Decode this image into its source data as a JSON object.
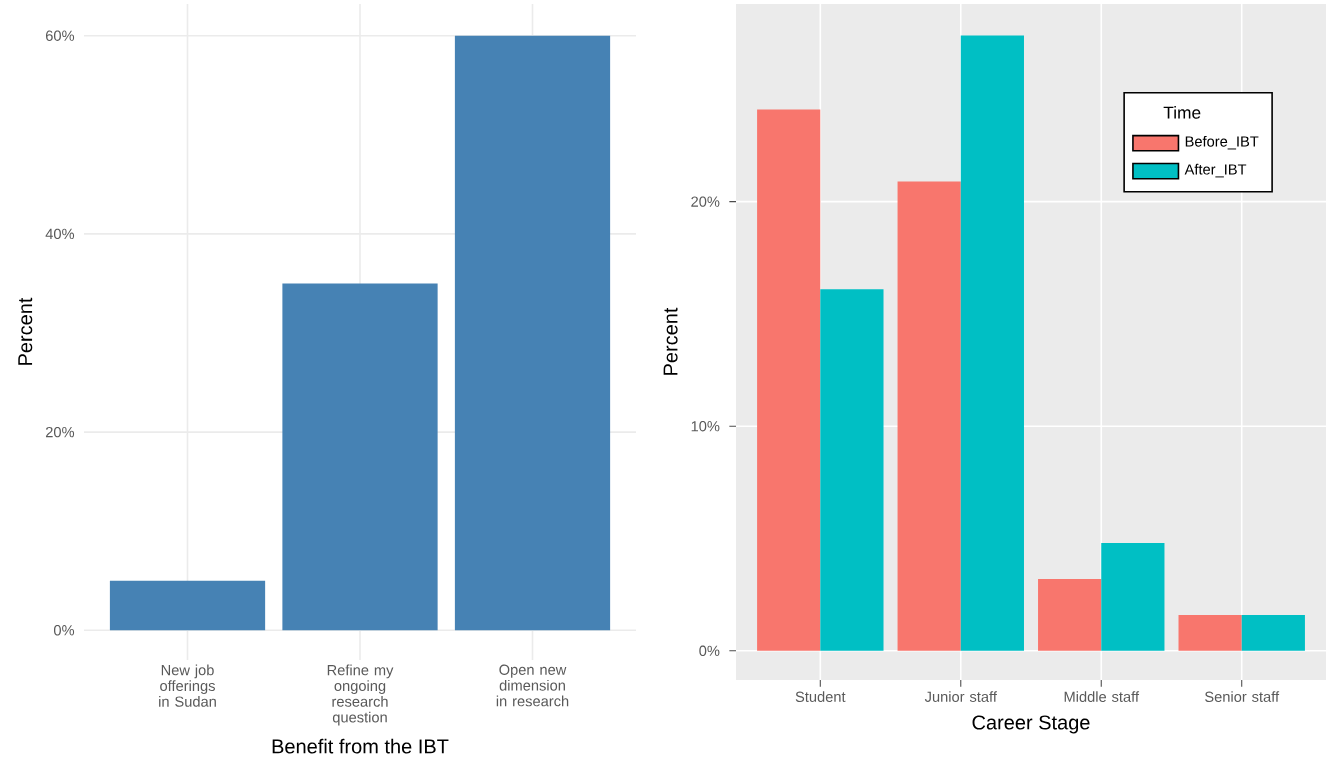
{
  "chart_data": [
    {
      "type": "bar",
      "xlabel": "Benefit from the IBT",
      "ylabel": "Percent",
      "categories": [
        "New job offerings in Sudan",
        "Refine my ongoing research question",
        "Open new dimension in research"
      ],
      "values": [
        5,
        35,
        60
      ],
      "color": "#4682b4",
      "ylim": [
        -3,
        63.2
      ],
      "yticks": [
        {
          "value": 0,
          "label": "0%"
        },
        {
          "value": 20,
          "label": "20%"
        },
        {
          "value": 40,
          "label": "40%"
        },
        {
          "value": 60,
          "label": "60%"
        }
      ],
      "grid": true
    },
    {
      "type": "bar",
      "xlabel": "Career Stage",
      "ylabel": "Percent",
      "legend_title": "Time",
      "categories": [
        "Student",
        "Junior staff",
        "Middle staff",
        "Senior staff"
      ],
      "series": [
        {
          "name": "Before_IBT",
          "color": "#f8766d",
          "values": [
            24.1,
            20.9,
            3.2,
            1.6
          ]
        },
        {
          "name": "After_IBT",
          "color": "#00bfc4",
          "values": [
            16.1,
            27.4,
            4.8,
            1.6
          ]
        }
      ],
      "ylim": [
        -1.3,
        28.8
      ],
      "yticks": [
        {
          "value": 0,
          "label": "0%"
        },
        {
          "value": 10,
          "label": "10%"
        },
        {
          "value": 20,
          "label": "20%"
        }
      ],
      "grid": true,
      "legend": "top right"
    }
  ]
}
